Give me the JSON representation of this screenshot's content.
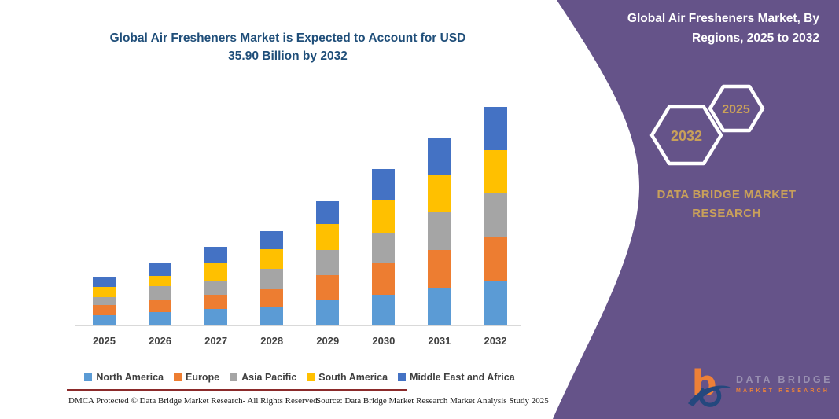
{
  "colors": {
    "purple_panel": "#655389",
    "gold": "#c9a05a",
    "title_navy": "#1f4e79",
    "axis_gray": "#d9d9d9",
    "tick_gray": "#404040",
    "maroon_rule": "#8b2a2a",
    "logo_orange": "#ee8038",
    "logo_navy": "#24487e"
  },
  "chart": {
    "title_line1": "Global Air Fresheners Market is Expected to Account for USD",
    "title_line2": "35.90 Billion by 2032"
  },
  "chart_data": {
    "type": "bar",
    "stacked": true,
    "title": "Global Air Fresheners Market is Expected to Account for USD 35.90 Billion by 2032",
    "value_unit": "USD billion (segment values estimated from bar heights)",
    "categories": [
      "2025",
      "2026",
      "2027",
      "2028",
      "2029",
      "2030",
      "2031",
      "2032"
    ],
    "series": [
      {
        "name": "North America",
        "color": "#5B9BD5",
        "values": [
          1.6,
          2.1,
          2.6,
          3.0,
          4.1,
          4.9,
          6.1,
          7.1
        ]
      },
      {
        "name": "Europe",
        "color": "#ED7D31",
        "values": [
          1.6,
          2.1,
          2.3,
          3.0,
          4.1,
          5.2,
          6.2,
          7.4
        ]
      },
      {
        "name": "Asia Pacific",
        "color": "#A5A5A5",
        "values": [
          1.3,
          2.1,
          2.3,
          3.2,
          4.1,
          5.1,
          6.2,
          7.1
        ]
      },
      {
        "name": "South America",
        "color": "#FFC000",
        "values": [
          1.7,
          1.8,
          2.9,
          3.2,
          4.3,
          5.3,
          6.1,
          7.2
        ]
      },
      {
        "name": "Middle East and Africa",
        "color": "#4472C4",
        "values": [
          1.6,
          2.1,
          2.7,
          3.0,
          3.8,
          5.1,
          6.1,
          7.1
        ]
      }
    ],
    "totals": [
      7.8,
      10.2,
      12.8,
      15.4,
      20.4,
      25.6,
      30.7,
      35.9
    ],
    "y_axis_labels_visible": false,
    "grid": false,
    "legend_position": "bottom"
  },
  "right_panel": {
    "title": "Global Air Fresheners Market, By Regions, 2025 to 2032",
    "hexagon_back_label": "2032",
    "hexagon_front_label": "2025",
    "brand_text": "DATA BRIDGE MARKET RESEARCH",
    "logo": {
      "letter": "b",
      "name_top": "DATA BRIDGE",
      "name_bottom": "MARKET RESEARCH"
    }
  },
  "footer": {
    "dmca": "DMCA Protected © Data Bridge Market Research-  All Rights Reserved.",
    "source": "Source: Data Bridge Market Research  Market Analysis Study 2025"
  }
}
